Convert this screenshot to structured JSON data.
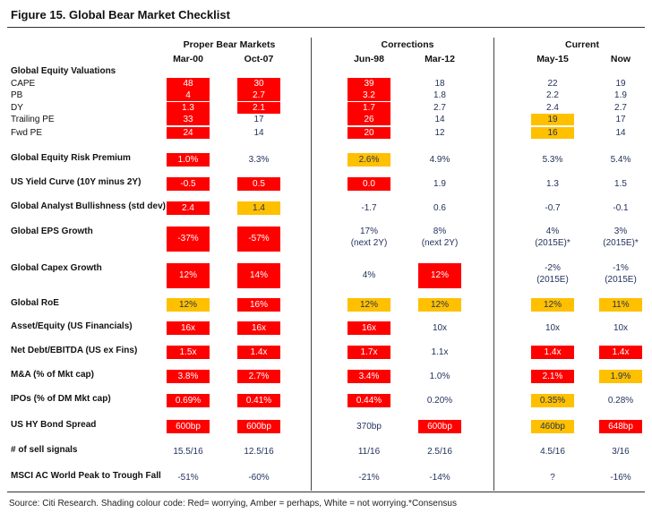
{
  "title": "Figure 15. Global Bear Market Checklist",
  "colors": {
    "red": "#ff0000",
    "amber": "#ffc000",
    "text": "#1f2f5a"
  },
  "groups": [
    "Proper Bear Markets",
    "Corrections",
    "Current"
  ],
  "columns": [
    "Mar-00",
    "Oct-07",
    "Jun-98",
    "Mar-12",
    "May-15",
    "Now"
  ],
  "rows": [
    {
      "label": "Global Equity Valuations",
      "bold": true,
      "cells": []
    },
    {
      "label": "CAPE",
      "bold": false,
      "cells": [
        {
          "v": "48",
          "c": "red"
        },
        {
          "v": "30",
          "c": "red"
        },
        {
          "v": "39",
          "c": "red"
        },
        {
          "v": "18",
          "c": ""
        },
        {
          "v": "22",
          "c": ""
        },
        {
          "v": "19",
          "c": ""
        }
      ]
    },
    {
      "label": "PB",
      "bold": false,
      "cells": [
        {
          "v": "4",
          "c": "red"
        },
        {
          "v": "2.7",
          "c": "red"
        },
        {
          "v": "3.2",
          "c": "red"
        },
        {
          "v": "1.8",
          "c": ""
        },
        {
          "v": "2.2",
          "c": ""
        },
        {
          "v": "1.9",
          "c": ""
        }
      ]
    },
    {
      "label": "DY",
      "bold": false,
      "cells": [
        {
          "v": "1.3",
          "c": "red"
        },
        {
          "v": "2.1",
          "c": "red"
        },
        {
          "v": "1.7",
          "c": "red"
        },
        {
          "v": "2.7",
          "c": ""
        },
        {
          "v": "2.4",
          "c": ""
        },
        {
          "v": "2.7",
          "c": ""
        }
      ]
    },
    {
      "label": "Trailing PE",
      "bold": false,
      "cells": [
        {
          "v": "33",
          "c": "red"
        },
        {
          "v": "17",
          "c": ""
        },
        {
          "v": "26",
          "c": "red"
        },
        {
          "v": "14",
          "c": ""
        },
        {
          "v": "19",
          "c": "amber"
        },
        {
          "v": "17",
          "c": ""
        }
      ]
    },
    {
      "label": "Fwd PE",
      "bold": false,
      "cells": [
        {
          "v": "24",
          "c": "red"
        },
        {
          "v": "14",
          "c": ""
        },
        {
          "v": "20",
          "c": "red"
        },
        {
          "v": "12",
          "c": ""
        },
        {
          "v": "16",
          "c": "amber"
        },
        {
          "v": "14",
          "c": ""
        }
      ]
    },
    {
      "label": "Global Equity Risk Premium",
      "bold": true,
      "cells": [
        {
          "v": "1.0%",
          "c": "red"
        },
        {
          "v": "3.3%",
          "c": ""
        },
        {
          "v": "2.6%",
          "c": "amber"
        },
        {
          "v": "4.9%",
          "c": ""
        },
        {
          "v": "5.3%",
          "c": ""
        },
        {
          "v": "5.4%",
          "c": ""
        }
      ]
    },
    {
      "label": "US Yield Curve (10Y minus 2Y)",
      "bold": true,
      "cells": [
        {
          "v": "-0.5",
          "c": "red"
        },
        {
          "v": "0.5",
          "c": "red"
        },
        {
          "v": "0.0",
          "c": "red"
        },
        {
          "v": "1.9",
          "c": ""
        },
        {
          "v": "1.3",
          "c": ""
        },
        {
          "v": "1.5",
          "c": ""
        }
      ]
    },
    {
      "label": "Global Analyst Bullishness (std dev)",
      "bold": true,
      "cells": [
        {
          "v": "2.4",
          "c": "red"
        },
        {
          "v": "1.4",
          "c": "amber"
        },
        {
          "v": "-1.7",
          "c": ""
        },
        {
          "v": "0.6",
          "c": ""
        },
        {
          "v": "-0.7",
          "c": ""
        },
        {
          "v": "-0.1",
          "c": ""
        }
      ]
    },
    {
      "label": "Global EPS Growth",
      "bold": true,
      "cells": [
        {
          "v": "-37%",
          "c": "red"
        },
        {
          "v": "-57%",
          "c": "red"
        },
        {
          "v": "17%",
          "v2": "(next 2Y)",
          "c": ""
        },
        {
          "v": "8%",
          "v2": "(next 2Y)",
          "c": ""
        },
        {
          "v": "4%",
          "v2": "(2015E)*",
          "c": ""
        },
        {
          "v": "3%",
          "v2": "(2015E)*",
          "c": ""
        }
      ]
    },
    {
      "label": "Global Capex Growth",
      "bold": true,
      "cells": [
        {
          "v": "12%",
          "c": "red"
        },
        {
          "v": "14%",
          "c": "red"
        },
        {
          "v": "4%",
          "c": ""
        },
        {
          "v": "12%",
          "c": "red"
        },
        {
          "v": "-2%",
          "v2": "(2015E)",
          "c": ""
        },
        {
          "v": "-1%",
          "v2": "(2015E)",
          "c": ""
        }
      ]
    },
    {
      "label": "Global RoE",
      "bold": true,
      "cells": [
        {
          "v": "12%",
          "c": "amber"
        },
        {
          "v": "16%",
          "c": "red"
        },
        {
          "v": "12%",
          "c": "amber"
        },
        {
          "v": "12%",
          "c": "amber"
        },
        {
          "v": "12%",
          "c": "amber"
        },
        {
          "v": "11%",
          "c": "amber"
        }
      ]
    },
    {
      "label": "Asset/Equity (US Financials)",
      "bold": true,
      "cells": [
        {
          "v": "16x",
          "c": "red"
        },
        {
          "v": "16x",
          "c": "red"
        },
        {
          "v": "16x",
          "c": "red"
        },
        {
          "v": "10x",
          "c": ""
        },
        {
          "v": "10x",
          "c": ""
        },
        {
          "v": "10x",
          "c": ""
        }
      ]
    },
    {
      "label": "Net Debt/EBITDA (US ex Fins)",
      "bold": true,
      "cells": [
        {
          "v": "1.5x",
          "c": "red"
        },
        {
          "v": "1.4x",
          "c": "red"
        },
        {
          "v": "1.7x",
          "c": "red"
        },
        {
          "v": "1.1x",
          "c": ""
        },
        {
          "v": "1.4x",
          "c": "red"
        },
        {
          "v": "1.4x",
          "c": "red"
        }
      ]
    },
    {
      "label": "M&A (% of Mkt cap)",
      "bold": true,
      "cells": [
        {
          "v": "3.8%",
          "c": "red"
        },
        {
          "v": "2.7%",
          "c": "red"
        },
        {
          "v": "3.4%",
          "c": "red"
        },
        {
          "v": "1.0%",
          "c": ""
        },
        {
          "v": "2.1%",
          "c": "red"
        },
        {
          "v": "1.9%",
          "c": "amber"
        }
      ]
    },
    {
      "label": "IPOs (% of DM Mkt cap)",
      "bold": true,
      "cells": [
        {
          "v": "0.69%",
          "c": "red"
        },
        {
          "v": "0.41%",
          "c": "red"
        },
        {
          "v": "0.44%",
          "c": "red"
        },
        {
          "v": "0.20%",
          "c": ""
        },
        {
          "v": "0.35%",
          "c": "amber"
        },
        {
          "v": "0.28%",
          "c": ""
        }
      ]
    },
    {
      "label": "US HY Bond Spread",
      "bold": true,
      "cells": [
        {
          "v": "600bp",
          "c": "red"
        },
        {
          "v": "600bp",
          "c": "red"
        },
        {
          "v": "370bp",
          "c": ""
        },
        {
          "v": "600bp",
          "c": "red"
        },
        {
          "v": "460bp",
          "c": "amber"
        },
        {
          "v": "648bp",
          "c": "red"
        }
      ]
    },
    {
      "label": "# of sell signals",
      "bold": true,
      "cells": [
        {
          "v": "15.5/16",
          "c": ""
        },
        {
          "v": "12.5/16",
          "c": ""
        },
        {
          "v": "11/16",
          "c": ""
        },
        {
          "v": "2.5/16",
          "c": ""
        },
        {
          "v": "4.5/16",
          "c": ""
        },
        {
          "v": "3/16",
          "c": ""
        }
      ]
    },
    {
      "label": "MSCI AC World Peak to Trough Fall",
      "bold": true,
      "cells": [
        {
          "v": "-51%",
          "c": ""
        },
        {
          "v": "-60%",
          "c": ""
        },
        {
          "v": "-21%",
          "c": ""
        },
        {
          "v": "-14%",
          "c": ""
        },
        {
          "v": "?",
          "c": ""
        },
        {
          "v": "-16%",
          "c": ""
        }
      ]
    }
  ],
  "footer": "Source: Citi Research. Shading colour code: Red= worrying, Amber = perhaps, White = not worrying.*Consensus"
}
